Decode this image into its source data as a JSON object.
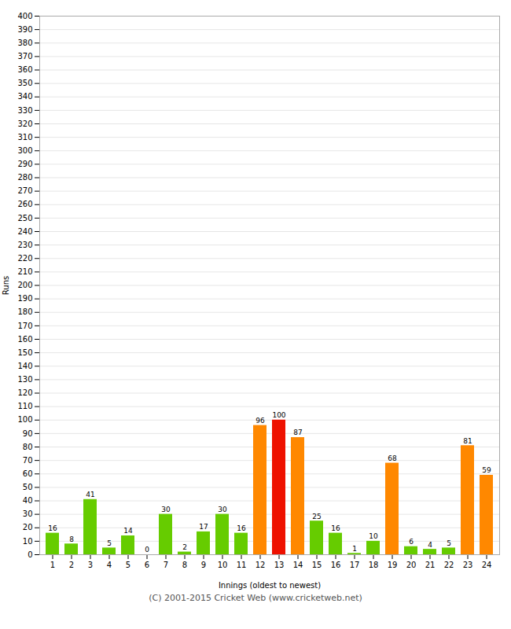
{
  "chart_data": {
    "type": "bar",
    "xlabel": "Innings (oldest to newest)",
    "ylabel": "Runs",
    "caption": "(C) 2001-2015 Cricket Web (www.cricketweb.net)",
    "categories": [
      "1",
      "2",
      "3",
      "4",
      "5",
      "6",
      "7",
      "8",
      "9",
      "10",
      "11",
      "12",
      "13",
      "14",
      "15",
      "16",
      "17",
      "18",
      "19",
      "20",
      "21",
      "22",
      "23",
      "24"
    ],
    "values": [
      16,
      8,
      41,
      5,
      14,
      0,
      30,
      2,
      17,
      30,
      16,
      96,
      100,
      87,
      25,
      16,
      1,
      10,
      68,
      6,
      4,
      5,
      81,
      59
    ],
    "colors": [
      "#66cc00",
      "#66cc00",
      "#66cc00",
      "#66cc00",
      "#66cc00",
      "#66cc00",
      "#66cc00",
      "#66cc00",
      "#66cc00",
      "#66cc00",
      "#66cc00",
      "#ff8800",
      "#ee1100",
      "#ff8800",
      "#66cc00",
      "#66cc00",
      "#66cc00",
      "#66cc00",
      "#ff8800",
      "#66cc00",
      "#66cc00",
      "#66cc00",
      "#ff8800",
      "#ff8800"
    ],
    "ylim": [
      0,
      400
    ],
    "yticks": [
      0,
      10,
      20,
      30,
      40,
      50,
      60,
      70,
      80,
      90,
      100,
      110,
      120,
      130,
      140,
      150,
      160,
      170,
      180,
      190,
      200,
      210,
      220,
      230,
      240,
      250,
      260,
      270,
      280,
      290,
      300,
      310,
      320,
      330,
      340,
      350,
      360,
      370,
      380,
      390,
      400
    ],
    "grid": true,
    "data_labels": true
  }
}
